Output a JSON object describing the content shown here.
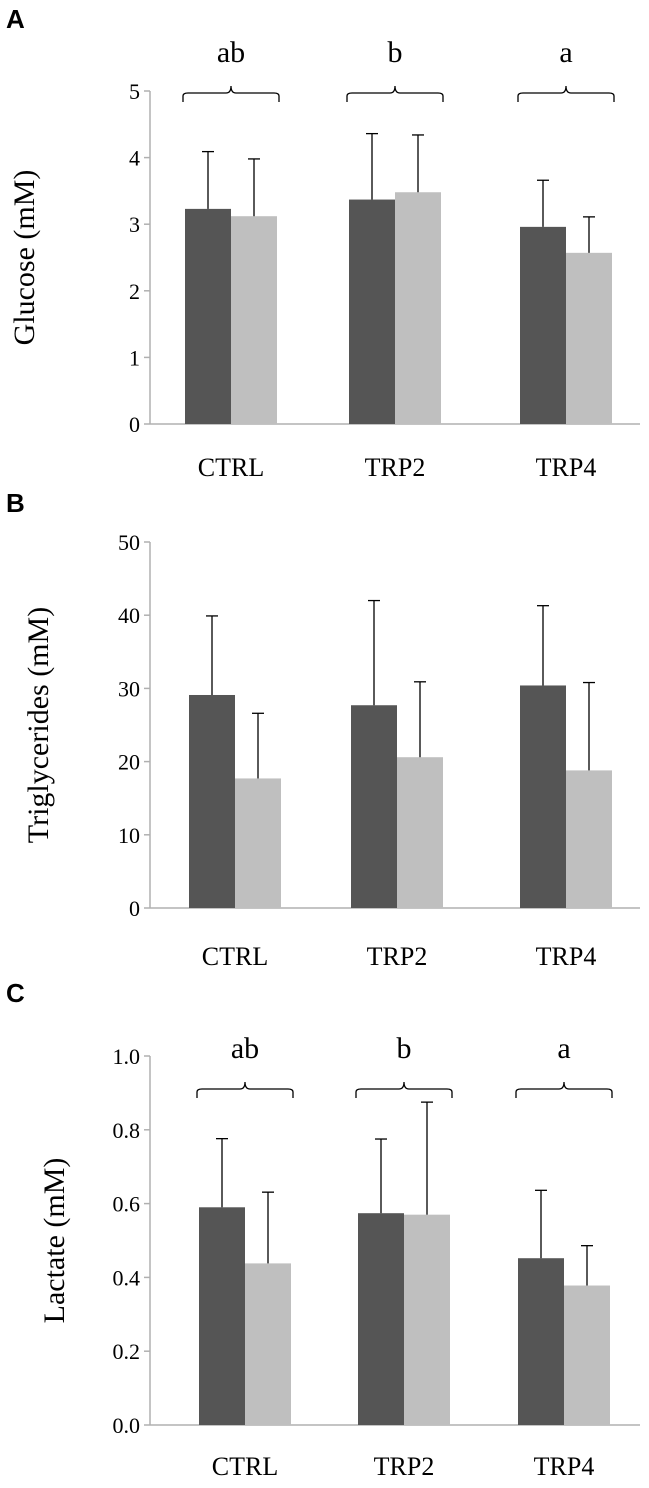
{
  "colors": {
    "series1": "#555555",
    "series2": "#bfbfbf",
    "axis": "#b0b0b0",
    "errorbar": "#000000"
  },
  "chart_data": [
    {
      "panel": "A",
      "type": "bar",
      "title": "",
      "xlabel": "",
      "ylabel": "Glucose (mM)",
      "ylim": [
        0,
        5
      ],
      "yticks": [
        0,
        1,
        2,
        3,
        4,
        5
      ],
      "ytick_labels": [
        "0",
        "1",
        "2",
        "3",
        "4",
        "5"
      ],
      "categories": [
        "CTRL",
        "TRP2",
        "TRP4"
      ],
      "series": [
        {
          "name": "dark",
          "values": [
            3.23,
            3.37,
            2.96
          ],
          "errors": [
            0.86,
            0.99,
            0.7
          ]
        },
        {
          "name": "light",
          "values": [
            3.12,
            3.48,
            2.57
          ],
          "errors": [
            0.86,
            0.86,
            0.54
          ]
        }
      ],
      "group_labels": [
        "ab",
        "b",
        "a"
      ],
      "grid": false
    },
    {
      "panel": "B",
      "type": "bar",
      "title": "",
      "xlabel": "",
      "ylabel": "Triglycerides (mM)",
      "ylim": [
        0,
        50
      ],
      "yticks": [
        0,
        10,
        20,
        30,
        40,
        50
      ],
      "ytick_labels": [
        "0",
        "10",
        "20",
        "30",
        "40",
        "50"
      ],
      "categories": [
        "CTRL",
        "TRP2",
        "TRP4"
      ],
      "series": [
        {
          "name": "dark",
          "values": [
            29.1,
            27.7,
            30.4
          ],
          "errors": [
            10.8,
            14.3,
            10.9
          ]
        },
        {
          "name": "light",
          "values": [
            17.7,
            20.6,
            18.8
          ],
          "errors": [
            8.9,
            10.3,
            12.0
          ]
        }
      ],
      "group_labels": [],
      "grid": false
    },
    {
      "panel": "C",
      "type": "bar",
      "title": "",
      "xlabel": "",
      "ylabel": "Lactate (mM)",
      "ylim": [
        0,
        1.0
      ],
      "yticks": [
        0,
        0.2,
        0.4,
        0.6,
        0.8,
        1.0
      ],
      "ytick_labels": [
        "0.0",
        "0.2",
        "0.4",
        "0.6",
        "0.8",
        "1.0"
      ],
      "categories": [
        "CTRL",
        "TRP2",
        "TRP4"
      ],
      "series": [
        {
          "name": "dark",
          "values": [
            0.59,
            0.574,
            0.452
          ],
          "errors": [
            0.186,
            0.201,
            0.184
          ]
        },
        {
          "name": "light",
          "values": [
            0.438,
            0.57,
            0.378
          ],
          "errors": [
            0.193,
            0.305,
            0.108
          ]
        }
      ],
      "group_labels": [
        "ab",
        "b",
        "a"
      ],
      "grid": false
    }
  ]
}
